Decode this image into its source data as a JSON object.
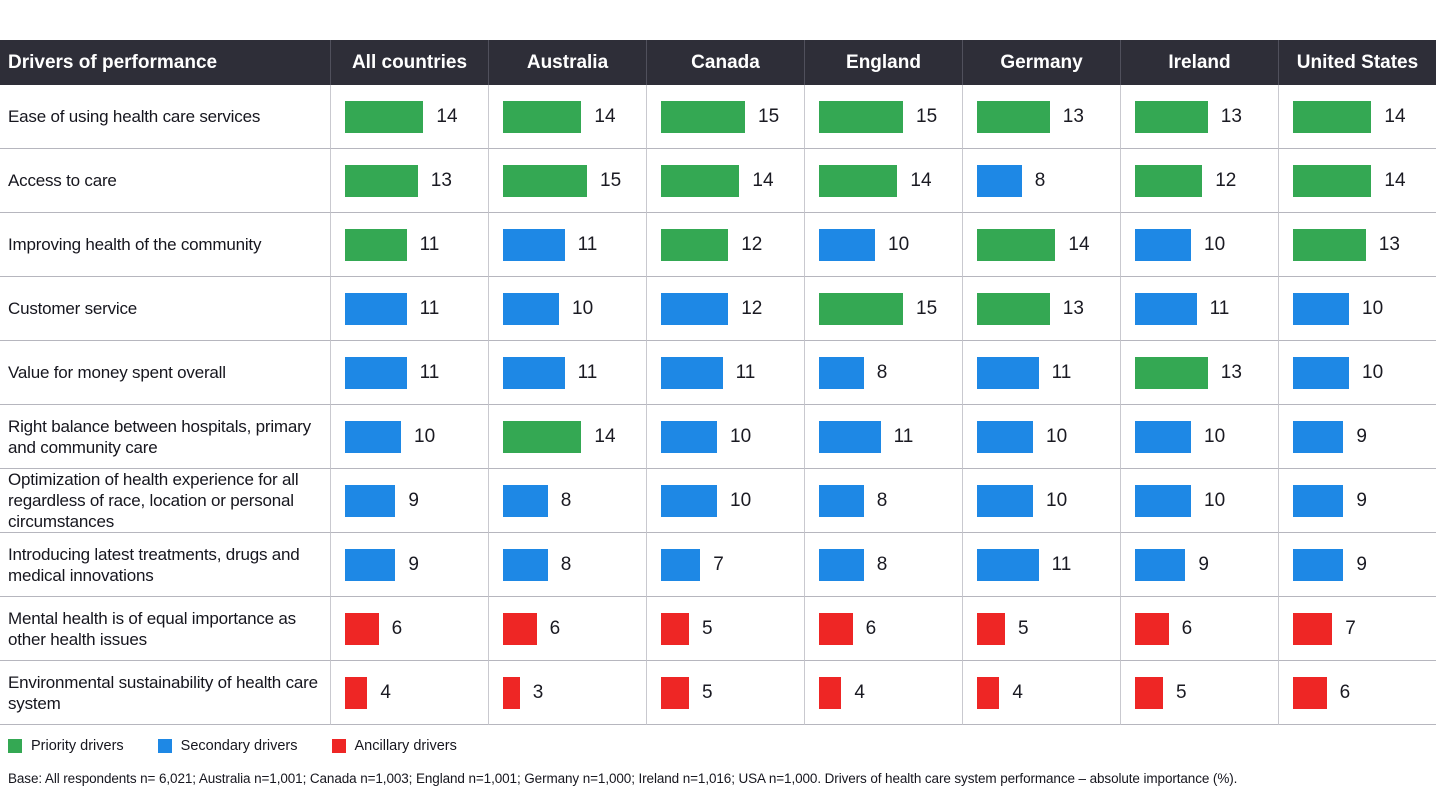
{
  "header": {
    "row_label": "Drivers of performance",
    "columns": [
      "All countries",
      "Australia",
      "Canada",
      "England",
      "Germany",
      "Ireland",
      "United States"
    ]
  },
  "colors": {
    "header_bg": "#2e2e38",
    "priority": "#34a853",
    "secondary": "#1e88e5",
    "ancillary": "#ee2625"
  },
  "legend": [
    {
      "label": "Priority drivers",
      "type": "priority"
    },
    {
      "label": "Secondary drivers",
      "type": "secondary"
    },
    {
      "label": "Ancillary drivers",
      "type": "ancillary"
    }
  ],
  "footnote": "Base: All respondents n= 6,021; Australia n=1,001; Canada n=1,003; England n=1,001; Germany n=1,000; Ireland n=1,016; USA n=1,000. Drivers of health care system performance – absolute importance (%).",
  "chart_data": {
    "type": "bar",
    "title": "Drivers of performance",
    "ylabel": "absolute importance (%)",
    "value_range": [
      0,
      15
    ],
    "legend_position": "bottom",
    "categories": [
      "Ease of using health care services",
      "Access to care",
      "Improving health of the community",
      "Customer service",
      "Value for money spent overall",
      "Right balance between hospitals, primary and community care",
      "Optimization of health experience for all regardless of race, location or personal circumstances",
      "Introducing latest treatments, drugs and medical innovations",
      "Mental health is of equal importance as other health issues",
      "Environmental sustainability of health care system"
    ],
    "series": [
      {
        "name": "All countries",
        "values": [
          14,
          13,
          11,
          11,
          11,
          10,
          9,
          9,
          6,
          4
        ],
        "driver_types": [
          "priority",
          "priority",
          "priority",
          "secondary",
          "secondary",
          "secondary",
          "secondary",
          "secondary",
          "ancillary",
          "ancillary"
        ]
      },
      {
        "name": "Australia",
        "values": [
          14,
          15,
          11,
          10,
          11,
          14,
          8,
          8,
          6,
          3
        ],
        "driver_types": [
          "priority",
          "priority",
          "secondary",
          "secondary",
          "secondary",
          "priority",
          "secondary",
          "secondary",
          "ancillary",
          "ancillary"
        ]
      },
      {
        "name": "Canada",
        "values": [
          15,
          14,
          12,
          12,
          11,
          10,
          10,
          7,
          5,
          5
        ],
        "driver_types": [
          "priority",
          "priority",
          "priority",
          "secondary",
          "secondary",
          "secondary",
          "secondary",
          "secondary",
          "ancillary",
          "ancillary"
        ]
      },
      {
        "name": "England",
        "values": [
          15,
          14,
          10,
          15,
          8,
          11,
          8,
          8,
          6,
          4
        ],
        "driver_types": [
          "priority",
          "priority",
          "secondary",
          "priority",
          "secondary",
          "secondary",
          "secondary",
          "secondary",
          "ancillary",
          "ancillary"
        ]
      },
      {
        "name": "Germany",
        "values": [
          13,
          8,
          14,
          13,
          11,
          10,
          10,
          11,
          5,
          4
        ],
        "driver_types": [
          "priority",
          "secondary",
          "priority",
          "priority",
          "secondary",
          "secondary",
          "secondary",
          "secondary",
          "ancillary",
          "ancillary"
        ]
      },
      {
        "name": "Ireland",
        "values": [
          13,
          12,
          10,
          11,
          13,
          10,
          10,
          9,
          6,
          5
        ],
        "driver_types": [
          "priority",
          "priority",
          "secondary",
          "secondary",
          "priority",
          "secondary",
          "secondary",
          "secondary",
          "ancillary",
          "ancillary"
        ]
      },
      {
        "name": "United States",
        "values": [
          14,
          14,
          13,
          10,
          10,
          9,
          9,
          9,
          7,
          6
        ],
        "driver_types": [
          "priority",
          "priority",
          "priority",
          "secondary",
          "secondary",
          "secondary",
          "secondary",
          "secondary",
          "ancillary",
          "ancillary"
        ]
      }
    ]
  }
}
